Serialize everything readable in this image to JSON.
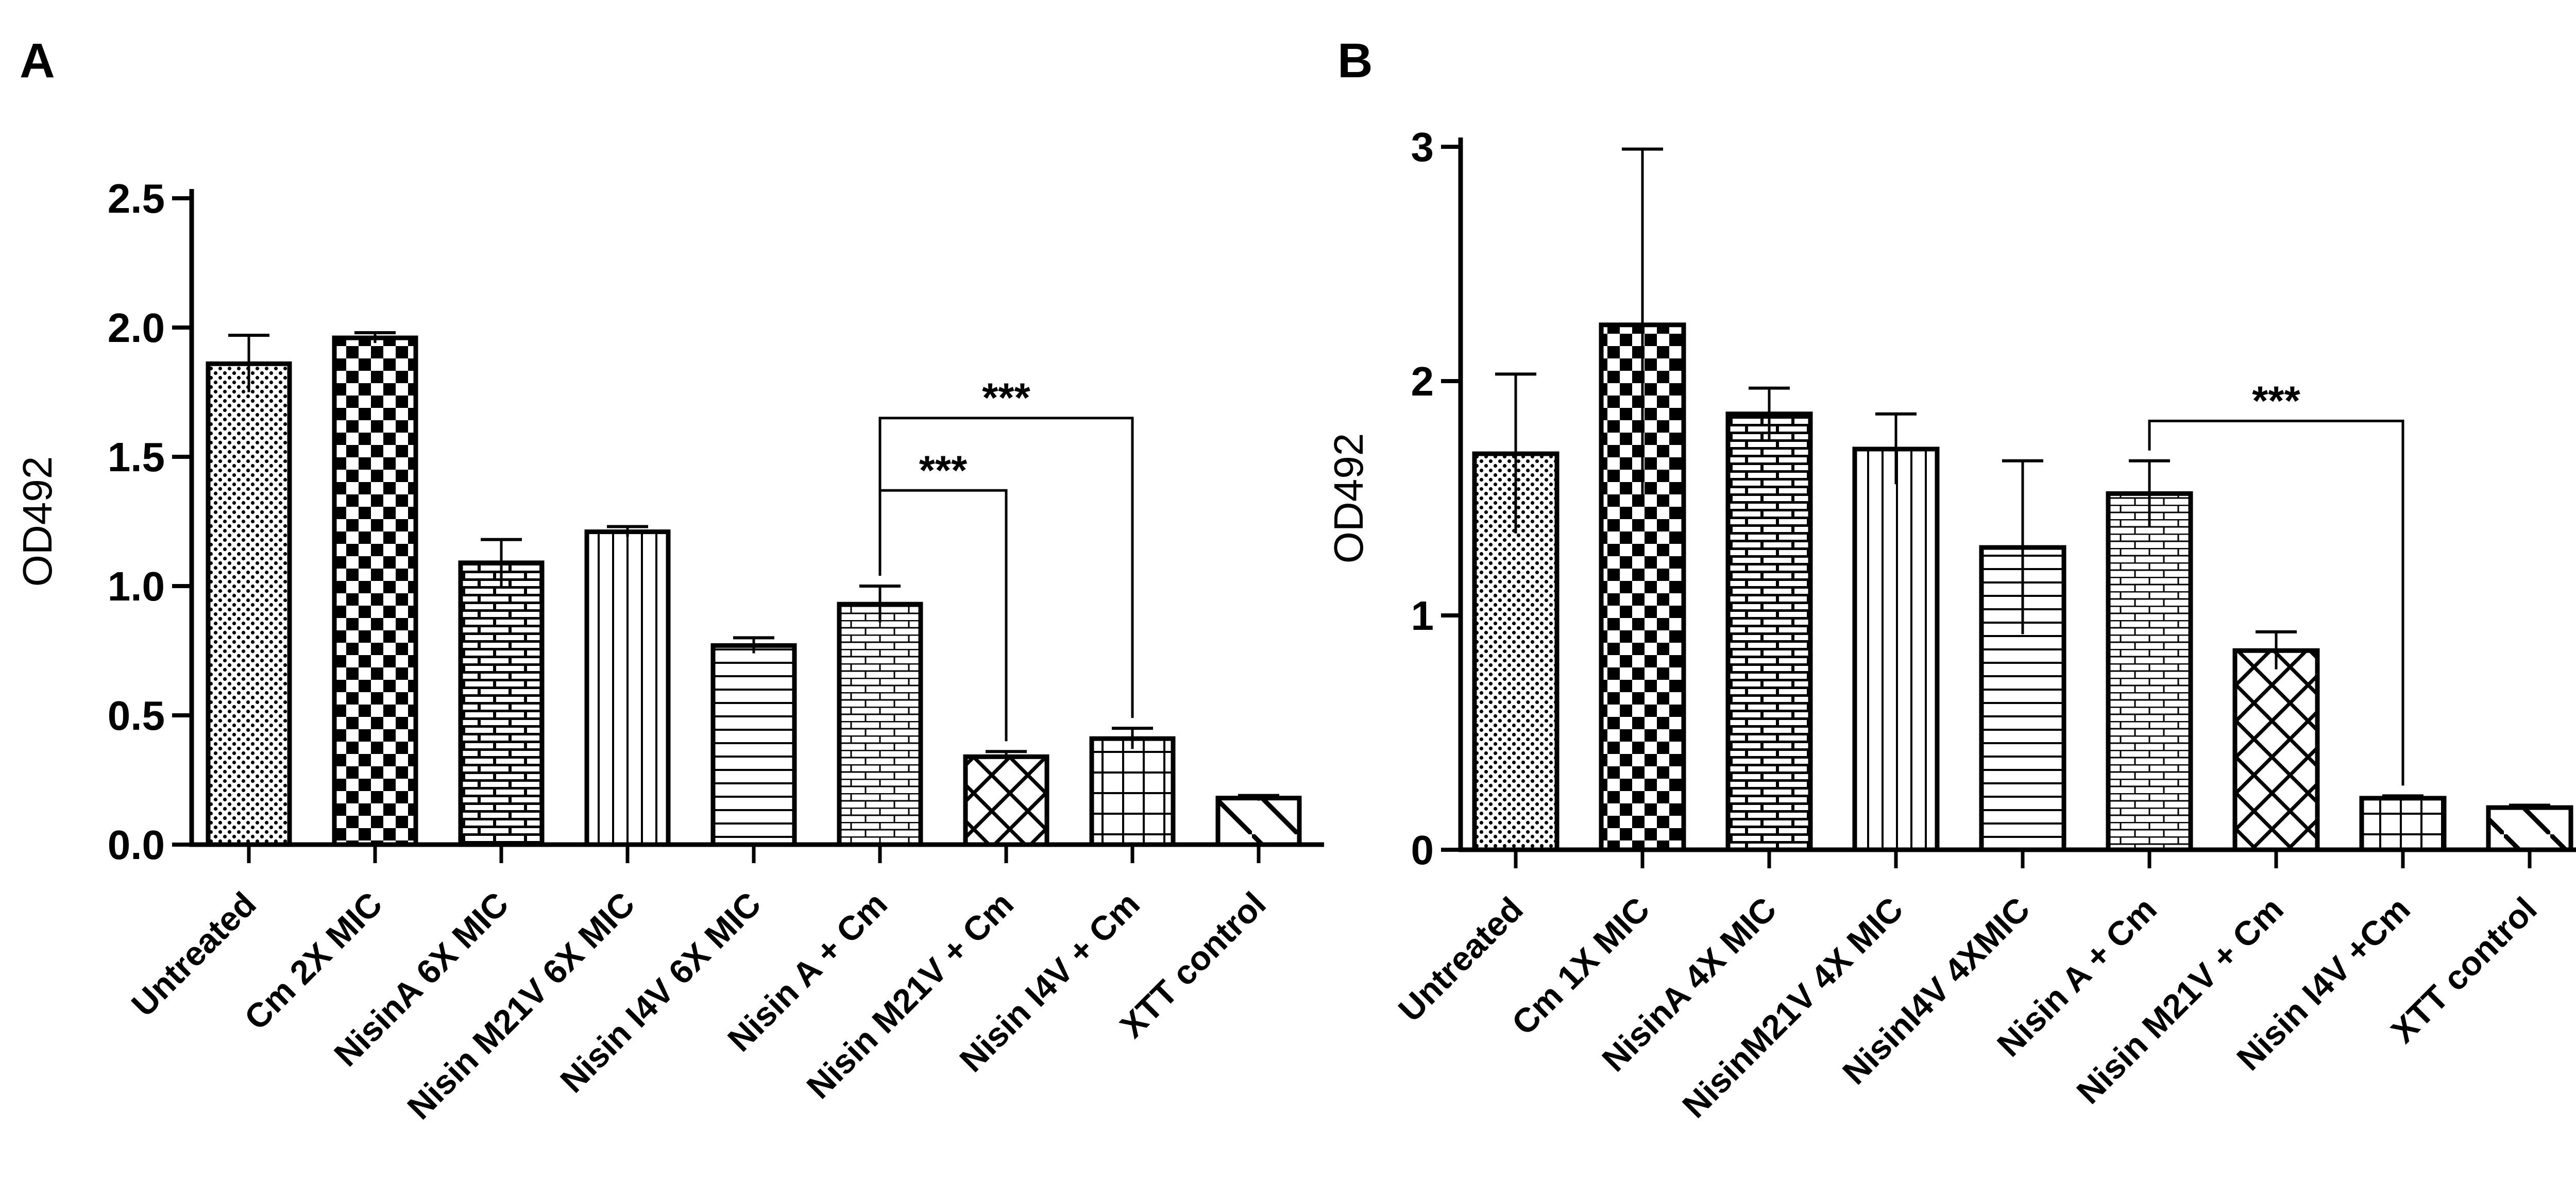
{
  "chart_data": [
    {
      "type": "bar",
      "panel": "A",
      "ylabel": "OD492",
      "ylim": [
        0,
        2.5
      ],
      "yticks": [
        "0.0",
        "0.5",
        "1.0",
        "1.5",
        "2.0",
        "2.5"
      ],
      "categories": [
        "Untreated",
        "Cm 2X MIC",
        "NisinA 6X MIC",
        "Nisin M21V 6X MIC",
        "Nisin I4V 6X MIC",
        "Nisin A + Cm",
        "Nisin M21V + Cm",
        "Nisin I4V + Cm",
        "XTT control"
      ],
      "values": [
        1.86,
        1.96,
        1.09,
        1.21,
        0.77,
        0.93,
        0.34,
        0.41,
        0.18
      ],
      "errors": [
        0.11,
        0.02,
        0.09,
        0.02,
        0.03,
        0.07,
        0.02,
        0.04,
        0.01
      ],
      "patterns": [
        "dots",
        "checker",
        "brick",
        "vlines",
        "hlines",
        "brick-light",
        "crosshatch",
        "grid",
        "diagonal"
      ],
      "significance": [
        {
          "from": 5,
          "to": 6,
          "label": "***",
          "level": 1.37
        },
        {
          "from": 5,
          "to": 7,
          "label": "***",
          "level": 1.65
        }
      ],
      "grid": false,
      "legend": "none"
    },
    {
      "type": "bar",
      "panel": "B",
      "ylabel": "OD492",
      "ylim": [
        0,
        3
      ],
      "yticks": [
        "0",
        "1",
        "2",
        "3"
      ],
      "categories": [
        "Untreated",
        "Cm 1X MIC",
        "NisinA 4X MIC",
        "NisinM21V 4X MIC",
        "NisinI4V 4XMIC",
        "Nisin A + Cm",
        "Nisin M21V + Cm",
        "Nisin I4V +Cm",
        "XTT control"
      ],
      "values": [
        1.69,
        2.24,
        1.86,
        1.71,
        1.29,
        1.52,
        0.85,
        0.22,
        0.18
      ],
      "errors": [
        0.34,
        0.75,
        0.11,
        0.15,
        0.37,
        0.14,
        0.08,
        0.01,
        0.01
      ],
      "patterns": [
        "dots",
        "checker",
        "brick",
        "vlines",
        "hlines",
        "brick-light",
        "crosshatch",
        "grid",
        "diagonal"
      ],
      "significance": [
        {
          "from": 5,
          "to": 7,
          "label": "***",
          "level": 1.83
        }
      ],
      "grid": false,
      "legend": "none"
    }
  ]
}
